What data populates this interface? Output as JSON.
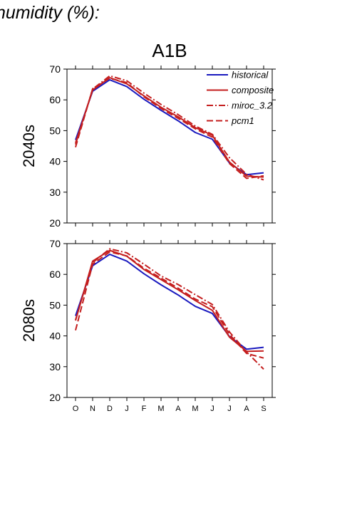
{
  "header": {
    "title": "humidity (%):",
    "scenario": "A1B"
  },
  "chart_data": [
    {
      "type": "line",
      "panel_label": "2040s",
      "categories": [
        "O",
        "N",
        "D",
        "J",
        "F",
        "M",
        "A",
        "M",
        "J",
        "J",
        "A",
        "S"
      ],
      "ylim": [
        20,
        70
      ],
      "yticks": [
        20,
        30,
        40,
        50,
        60,
        70
      ],
      "series": [
        {
          "name": "historical",
          "color": "#1a1abf",
          "dash": "solid",
          "values": [
            47.0,
            62.8,
            66.5,
            64.3,
            60.2,
            56.6,
            53.2,
            49.4,
            47.2,
            39.5,
            35.7,
            36.3
          ]
        },
        {
          "name": "composite",
          "color": "#c41e1e",
          "dash": "solid",
          "values": [
            46.0,
            63.2,
            67.2,
            65.2,
            61.3,
            57.6,
            54.5,
            51.0,
            48.5,
            39.8,
            35.2,
            34.9
          ]
        },
        {
          "name": "miroc_3.2",
          "color": "#c41e1e",
          "dash": "dashdot",
          "values": [
            45.5,
            63.5,
            67.8,
            66.2,
            62.2,
            58.5,
            55.2,
            51.5,
            48.8,
            41.2,
            35.8,
            34.0
          ]
        },
        {
          "name": "pcm1",
          "color": "#c41e1e",
          "dash": "dash",
          "values": [
            44.6,
            63.6,
            67.0,
            65.6,
            61.0,
            57.2,
            54.0,
            50.6,
            47.9,
            39.3,
            34.5,
            35.3
          ]
        }
      ],
      "legend": "top-right"
    },
    {
      "type": "line",
      "panel_label": "2080s",
      "categories": [
        "O",
        "N",
        "D",
        "J",
        "F",
        "M",
        "A",
        "M",
        "J",
        "J",
        "A",
        "S"
      ],
      "ylim": [
        20,
        70
      ],
      "yticks": [
        20,
        30,
        40,
        50,
        60,
        70
      ],
      "series": [
        {
          "name": "historical",
          "color": "#1a1abf",
          "dash": "solid",
          "values": [
            46.5,
            62.8,
            66.5,
            64.3,
            60.2,
            56.6,
            53.3,
            49.6,
            47.3,
            39.8,
            35.7,
            36.3
          ]
        },
        {
          "name": "composite",
          "color": "#c41e1e",
          "dash": "solid",
          "values": [
            45.0,
            64.3,
            67.8,
            65.9,
            61.6,
            58.3,
            55.0,
            51.5,
            48.3,
            39.6,
            35.0,
            35.1
          ]
        },
        {
          "name": "miroc_3.2",
          "color": "#c41e1e",
          "dash": "dashdot",
          "values": [
            45.2,
            63.8,
            68.3,
            67.0,
            63.3,
            59.5,
            56.7,
            53.4,
            50.2,
            41.3,
            34.8,
            29.2
          ]
        },
        {
          "name": "pcm1",
          "color": "#c41e1e",
          "dash": "dash",
          "values": [
            41.8,
            63.3,
            67.3,
            66.0,
            62.0,
            58.8,
            55.5,
            52.0,
            49.5,
            40.5,
            34.3,
            32.8
          ]
        }
      ]
    }
  ]
}
